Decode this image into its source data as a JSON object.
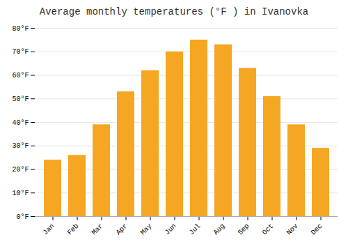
{
  "chart_data": {
    "type": "bar",
    "title": "Average monthly temperatures (°F ) in Ivanovka",
    "categories": [
      "Jan",
      "Feb",
      "Mar",
      "Apr",
      "May",
      "Jun",
      "Jul",
      "Aug",
      "Sep",
      "Oct",
      "Nov",
      "Dec"
    ],
    "values": [
      24,
      26,
      39,
      53,
      62,
      70,
      75,
      73,
      63,
      51,
      39,
      29
    ],
    "color": "#F5A623",
    "ylim": [
      0,
      80
    ],
    "yticks": [
      {
        "value": 0,
        "label": "0°F"
      },
      {
        "value": 10,
        "label": "10°F"
      },
      {
        "value": 20,
        "label": "20°F"
      },
      {
        "value": 30,
        "label": "30°F"
      },
      {
        "value": 40,
        "label": "40°F"
      },
      {
        "value": 50,
        "label": "50°F"
      },
      {
        "value": 60,
        "label": "60°F"
      },
      {
        "value": 70,
        "label": "70°F"
      },
      {
        "value": 80,
        "label": "80°F"
      }
    ],
    "grid": true
  }
}
